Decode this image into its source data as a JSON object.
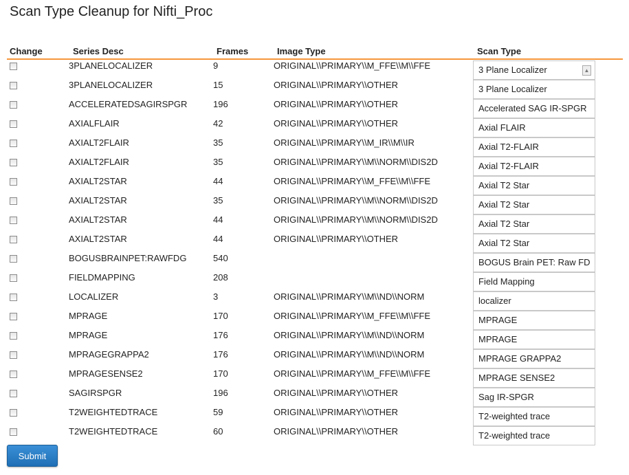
{
  "title": "Scan Type Cleanup for Nifti_Proc",
  "headers": {
    "change": "Change",
    "series_desc": "Series Desc",
    "frames": "Frames",
    "image_type": "Image Type",
    "scan_type": "Scan Type"
  },
  "accent_color": "#f7963b",
  "rows": [
    {
      "series_desc": "3PLANELOCALIZER",
      "frames": "9",
      "image_type": "ORIGINAL\\\\PRIMARY\\\\M_FFE\\\\M\\\\FFE",
      "scan_type": "3 Plane Localizer"
    },
    {
      "series_desc": "3PLANELOCALIZER",
      "frames": "15",
      "image_type": "ORIGINAL\\\\PRIMARY\\\\OTHER",
      "scan_type": "3 Plane Localizer"
    },
    {
      "series_desc": "ACCELERATEDSAGIRSPGR",
      "frames": "196",
      "image_type": "ORIGINAL\\\\PRIMARY\\\\OTHER",
      "scan_type": "Accelerated SAG IR-SPGR"
    },
    {
      "series_desc": "AXIALFLAIR",
      "frames": "42",
      "image_type": "ORIGINAL\\\\PRIMARY\\\\OTHER",
      "scan_type": "Axial FLAIR"
    },
    {
      "series_desc": "AXIALT2FLAIR",
      "frames": "35",
      "image_type": "ORIGINAL\\\\PRIMARY\\\\M_IR\\\\M\\\\IR",
      "scan_type": "Axial T2-FLAIR"
    },
    {
      "series_desc": "AXIALT2FLAIR",
      "frames": "35",
      "image_type": "ORIGINAL\\\\PRIMARY\\\\M\\\\NORM\\\\DIS2D",
      "scan_type": "Axial T2-FLAIR"
    },
    {
      "series_desc": "AXIALT2STAR",
      "frames": "44",
      "image_type": "ORIGINAL\\\\PRIMARY\\\\M_FFE\\\\M\\\\FFE",
      "scan_type": "Axial T2 Star"
    },
    {
      "series_desc": "AXIALT2STAR",
      "frames": "35",
      "image_type": "ORIGINAL\\\\PRIMARY\\\\M\\\\NORM\\\\DIS2D",
      "scan_type": "Axial T2 Star"
    },
    {
      "series_desc": "AXIALT2STAR",
      "frames": "44",
      "image_type": "ORIGINAL\\\\PRIMARY\\\\M\\\\NORM\\\\DIS2D",
      "scan_type": "Axial T2 Star"
    },
    {
      "series_desc": "AXIALT2STAR",
      "frames": "44",
      "image_type": "ORIGINAL\\\\PRIMARY\\\\OTHER",
      "scan_type": "Axial T2 Star"
    },
    {
      "series_desc": "BOGUSBRAINPET:RAWFDG",
      "frames": "540",
      "image_type": "",
      "scan_type": "BOGUS Brain PET: Raw FD"
    },
    {
      "series_desc": "FIELDMAPPING",
      "frames": "208",
      "image_type": "",
      "scan_type": "Field Mapping"
    },
    {
      "series_desc": "LOCALIZER",
      "frames": "3",
      "image_type": "ORIGINAL\\\\PRIMARY\\\\M\\\\ND\\\\NORM",
      "scan_type": "localizer"
    },
    {
      "series_desc": "MPRAGE",
      "frames": "170",
      "image_type": "ORIGINAL\\\\PRIMARY\\\\M_FFE\\\\M\\\\FFE",
      "scan_type": "MPRAGE"
    },
    {
      "series_desc": "MPRAGE",
      "frames": "176",
      "image_type": "ORIGINAL\\\\PRIMARY\\\\M\\\\ND\\\\NORM",
      "scan_type": "MPRAGE"
    },
    {
      "series_desc": "MPRAGEGRAPPA2",
      "frames": "176",
      "image_type": "ORIGINAL\\\\PRIMARY\\\\M\\\\ND\\\\NORM",
      "scan_type": "MPRAGE GRAPPA2"
    },
    {
      "series_desc": "MPRAGESENSE2",
      "frames": "170",
      "image_type": "ORIGINAL\\\\PRIMARY\\\\M_FFE\\\\M\\\\FFE",
      "scan_type": "MPRAGE SENSE2"
    },
    {
      "series_desc": "SAGIRSPGR",
      "frames": "196",
      "image_type": "ORIGINAL\\\\PRIMARY\\\\OTHER",
      "scan_type": "Sag IR-SPGR"
    },
    {
      "series_desc": "T2WEIGHTEDTRACE",
      "frames": "59",
      "image_type": "ORIGINAL\\\\PRIMARY\\\\OTHER",
      "scan_type": "T2-weighted trace"
    },
    {
      "series_desc": "T2WEIGHTEDTRACE",
      "frames": "60",
      "image_type": "ORIGINAL\\\\PRIMARY\\\\OTHER",
      "scan_type": "T2-weighted trace"
    }
  ],
  "submit_label": "Submit"
}
